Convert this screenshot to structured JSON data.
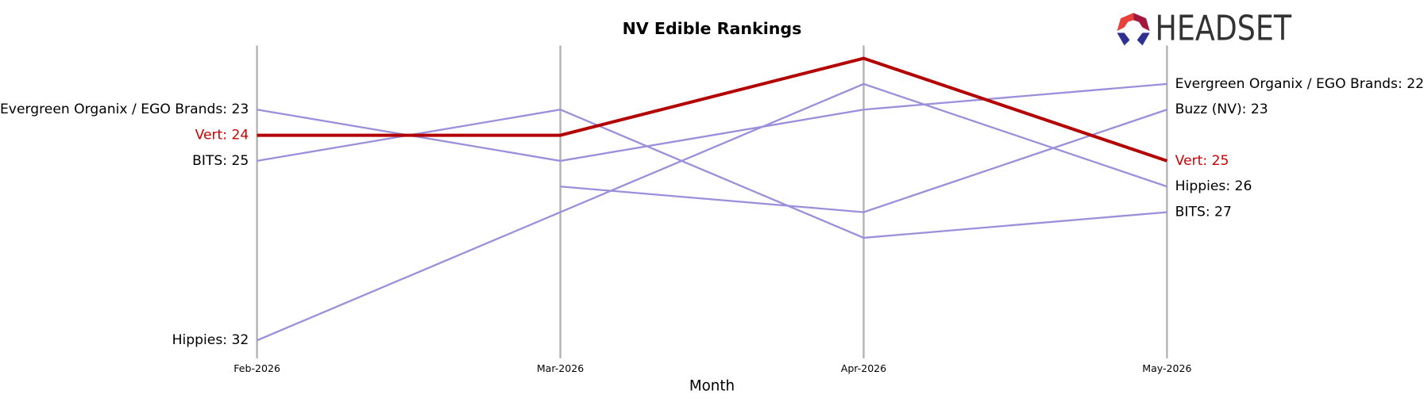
{
  "logo": "HEADSET",
  "chart_data": {
    "type": "bump",
    "title": "NV Edible Rankings",
    "x_label": "Month",
    "categories": [
      "Feb-2026",
      "Mar-2026",
      "Apr-2026",
      "May-2026"
    ],
    "ylim": [
      32.7,
      20.5
    ],
    "grid": true,
    "grid_color": "#b0b0b0",
    "series": [
      {
        "name": "Evergreen Organix / EGO Brands",
        "color": "#9b8fdb",
        "label_color": "#000000",
        "line_width": 2,
        "values": [
          23,
          25,
          23,
          22
        ],
        "value_labels": [
          "Evergreen Organix / EGO Brands: 23",
          null,
          null,
          "Evergreen Organix / EGO Brands: 22"
        ]
      },
      {
        "name": "BITS",
        "color": "#9b8fdb",
        "label_color": "#000000",
        "line_width": 2,
        "values": [
          25,
          23,
          28,
          27
        ],
        "value_labels": [
          "BITS: 25",
          null,
          null,
          "BITS: 27"
        ]
      },
      {
        "name": "Hippies",
        "color": "#9b8fdb",
        "label_color": "#000000",
        "line_width": 2,
        "values": [
          32,
          27,
          22,
          26
        ],
        "value_labels": [
          "Hippies: 32",
          null,
          null,
          "Hippies: 26"
        ]
      },
      {
        "name": "Buzz (NV)",
        "color": "#9b8fdb",
        "label_color": "#000000",
        "line_width": 2,
        "values": [
          null,
          26,
          27,
          23
        ],
        "value_labels": [
          null,
          null,
          null,
          "Buzz (NV): 23"
        ]
      },
      {
        "name": "Vert",
        "color": "#b30000",
        "label_color": "#cc0000",
        "line_width": 3.5,
        "values": [
          24,
          24,
          21,
          25
        ],
        "value_labels": [
          "Vert: 24",
          null,
          null,
          "Vert: 25"
        ]
      }
    ]
  }
}
